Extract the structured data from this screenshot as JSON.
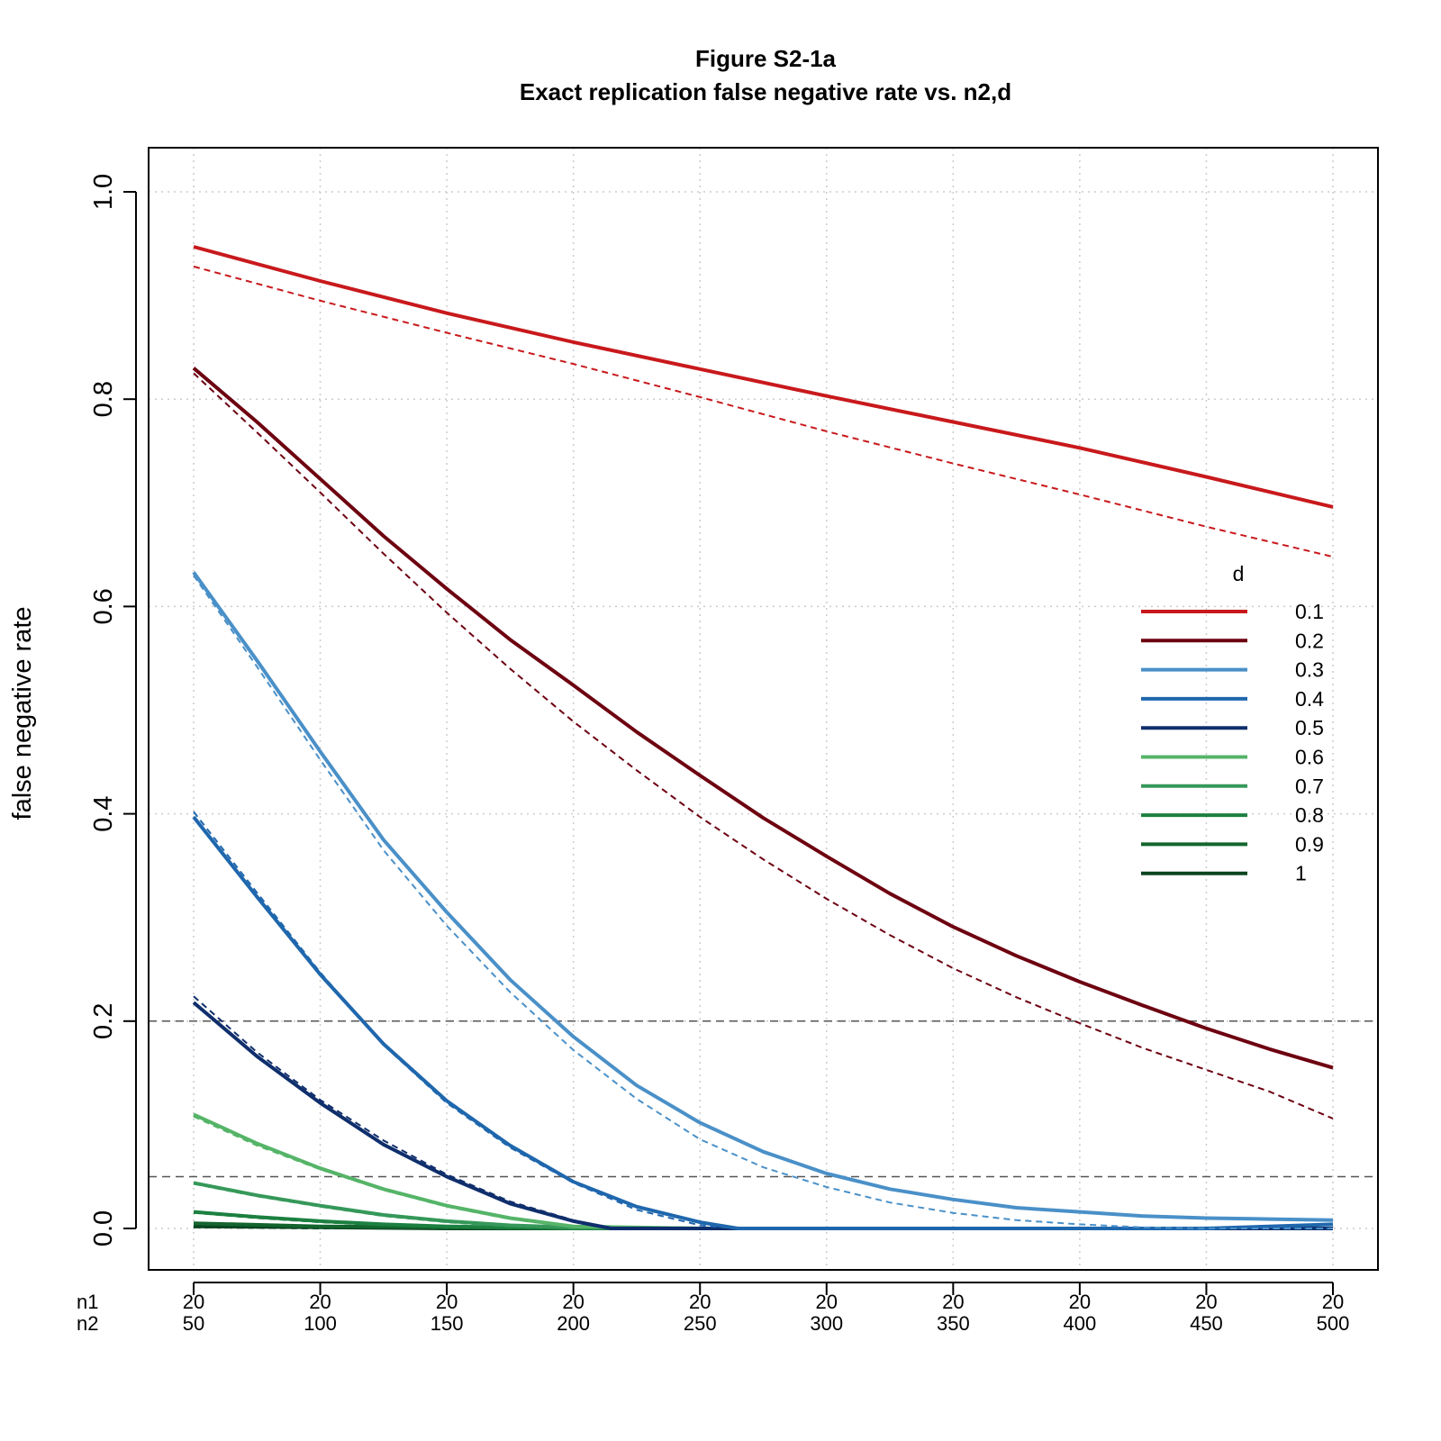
{
  "chart_data": {
    "type": "line",
    "title": "Figure S2-1a",
    "subtitle": "Exact replication false negative rate vs. n2,d",
    "xlabel": "",
    "ylabel": "false negative rate",
    "x_row_labels": [
      "n1",
      "n2"
    ],
    "n1": [
      20,
      20,
      20,
      20,
      20,
      20,
      20,
      20,
      20,
      20
    ],
    "n2": [
      50,
      100,
      150,
      200,
      250,
      300,
      350,
      400,
      450,
      500
    ],
    "xlim": [
      50,
      500
    ],
    "ylim": [
      0,
      1
    ],
    "y_ticks": [
      "0.0",
      "0.2",
      "0.4",
      "0.6",
      "0.8",
      "1.0"
    ],
    "y_tick_values": [
      0,
      0.2,
      0.4,
      0.6,
      0.8,
      1.0
    ],
    "grid": true,
    "reference_lines": [
      0.2,
      0.05
    ],
    "legend": {
      "title": "d",
      "position": "right"
    },
    "series": [
      {
        "name": "0.1",
        "color": "#c8191c",
        "x": [
          50,
          100,
          150,
          200,
          250,
          300,
          350,
          400,
          450,
          500
        ],
        "values": [
          0.947,
          0.914,
          0.883,
          0.855,
          0.829,
          0.803,
          0.778,
          0.753,
          0.725,
          0.696
        ],
        "dashed": [
          0.928,
          0.895,
          0.864,
          0.834,
          0.802,
          0.769,
          0.738,
          0.708,
          0.677,
          0.648
        ]
      },
      {
        "name": "0.2",
        "color": "#6d0010",
        "x": [
          50,
          75,
          100,
          125,
          150,
          175,
          200,
          225,
          250,
          275,
          300,
          325,
          350,
          375,
          400,
          425,
          450,
          475,
          500
        ],
        "values": [
          0.83,
          0.778,
          0.723,
          0.668,
          0.617,
          0.568,
          0.524,
          0.479,
          0.437,
          0.396,
          0.359,
          0.323,
          0.291,
          0.263,
          0.238,
          0.215,
          0.193,
          0.173,
          0.155
        ],
        "dashed": [
          0.825,
          0.768,
          0.71,
          0.651,
          0.594,
          0.54,
          0.489,
          0.442,
          0.397,
          0.356,
          0.318,
          0.283,
          0.251,
          0.223,
          0.198,
          0.174,
          0.153,
          0.132,
          0.106
        ]
      },
      {
        "name": "0.3",
        "color": "#4a90c8",
        "x": [
          50,
          75,
          100,
          125,
          150,
          175,
          200,
          225,
          250,
          275,
          300,
          325,
          350,
          375,
          400,
          425,
          450,
          475,
          500
        ],
        "values": [
          0.633,
          0.548,
          0.46,
          0.375,
          0.305,
          0.24,
          0.185,
          0.138,
          0.102,
          0.074,
          0.053,
          0.038,
          0.028,
          0.02,
          0.016,
          0.012,
          0.01,
          0.009,
          0.008
        ],
        "dashed": [
          0.63,
          0.542,
          0.452,
          0.365,
          0.292,
          0.228,
          0.172,
          0.125,
          0.086,
          0.059,
          0.04,
          0.025,
          0.015,
          0.008,
          0.004,
          0.001,
          0.0,
          0.0,
          0.0
        ]
      },
      {
        "name": "0.4",
        "color": "#1f67ad",
        "x": [
          50,
          75,
          100,
          125,
          150,
          175,
          200,
          225,
          250,
          265,
          300,
          350,
          400,
          450,
          500
        ],
        "values": [
          0.397,
          0.32,
          0.245,
          0.178,
          0.123,
          0.08,
          0.045,
          0.021,
          0.006,
          0.0,
          0.0,
          0.0,
          0.0,
          0.0,
          0.004
        ],
        "dashed": [
          0.402,
          0.324,
          0.247,
          0.177,
          0.121,
          0.078,
          0.044,
          0.018,
          0.003,
          0.0,
          0.0,
          0.0,
          0.0,
          0.0,
          0.0
        ]
      },
      {
        "name": "0.5",
        "color": "#0f2e6c",
        "x": [
          50,
          75,
          100,
          125,
          150,
          175,
          200,
          215,
          250,
          300,
          350,
          400,
          450,
          500
        ],
        "values": [
          0.218,
          0.166,
          0.121,
          0.081,
          0.05,
          0.024,
          0.007,
          0.0,
          0.0,
          0.0,
          0.0,
          0.0,
          0.0,
          0.0
        ],
        "dashed": [
          0.224,
          0.17,
          0.124,
          0.085,
          0.052,
          0.026,
          0.008,
          0.0,
          0.0,
          0.0,
          0.0,
          0.0,
          0.0,
          0.0
        ]
      },
      {
        "name": "0.6",
        "color": "#55b468",
        "x": [
          50,
          75,
          100,
          125,
          150,
          175,
          200,
          250,
          300,
          350,
          400,
          450,
          500
        ],
        "values": [
          0.11,
          0.082,
          0.058,
          0.038,
          0.022,
          0.01,
          0.002,
          0.0,
          0.0,
          0.0,
          0.0,
          0.0,
          0.0
        ],
        "dashed": [
          0.108,
          0.08,
          0.057,
          0.037,
          0.021,
          0.009,
          0.001,
          0.0,
          0.0,
          0.0,
          0.0,
          0.0,
          0.0
        ]
      },
      {
        "name": "0.7",
        "color": "#35985a",
        "x": [
          50,
          75,
          100,
          125,
          150,
          175,
          200,
          250,
          300,
          350,
          400,
          450,
          500
        ],
        "values": [
          0.044,
          0.032,
          0.022,
          0.013,
          0.007,
          0.003,
          0.001,
          0.0,
          0.0,
          0.0,
          0.0,
          0.0,
          0.0
        ],
        "dashed": [
          0.043,
          0.031,
          0.021,
          0.012,
          0.006,
          0.002,
          0.0,
          0.0,
          0.0,
          0.0,
          0.0,
          0.0,
          0.0
        ]
      },
      {
        "name": "0.8",
        "color": "#1c8040",
        "x": [
          50,
          75,
          100,
          125,
          150,
          175,
          200,
          250,
          300,
          350,
          400,
          450,
          500
        ],
        "values": [
          0.016,
          0.011,
          0.007,
          0.004,
          0.002,
          0.001,
          0.0,
          0.0,
          0.0,
          0.0,
          0.0,
          0.0,
          0.0
        ],
        "dashed": [
          0.015,
          0.01,
          0.006,
          0.003,
          0.001,
          0.0,
          0.0,
          0.0,
          0.0,
          0.0,
          0.0,
          0.0,
          0.0
        ]
      },
      {
        "name": "0.9",
        "color": "#13652e",
        "x": [
          50,
          100,
          150,
          200,
          250,
          300,
          350,
          400,
          450,
          500
        ],
        "values": [
          0.005,
          0.002,
          0.001,
          0.0,
          0.0,
          0.0,
          0.0,
          0.0,
          0.0,
          0.0
        ],
        "dashed": [
          0.004,
          0.002,
          0.0,
          0.0,
          0.0,
          0.0,
          0.0,
          0.0,
          0.0,
          0.0
        ]
      },
      {
        "name": "1",
        "color": "#0b4520",
        "x": [
          50,
          100,
          150,
          200,
          250,
          300,
          350,
          400,
          450,
          500
        ],
        "values": [
          0.002,
          0.001,
          0.0,
          0.0,
          0.0,
          0.0,
          0.0,
          0.0,
          0.0,
          0.0
        ],
        "dashed": [
          0.001,
          0.0,
          0.0,
          0.0,
          0.0,
          0.0,
          0.0,
          0.0,
          0.0,
          0.0
        ]
      }
    ]
  }
}
